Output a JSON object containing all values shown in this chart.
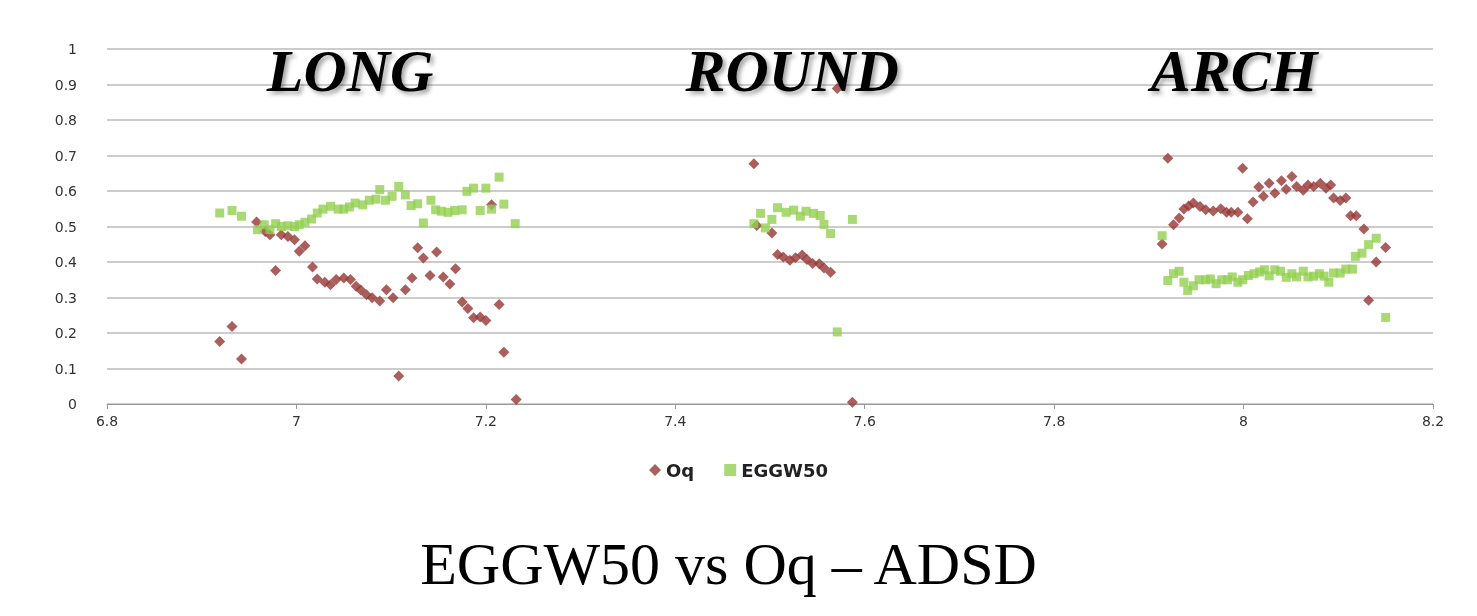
{
  "chart_data": {
    "type": "scatter",
    "title": "EGGW50 vs Oq – ADSD",
    "annotations": [
      "LONG",
      "ROUND",
      "ARCH"
    ],
    "xlim": [
      6.8,
      8.2
    ],
    "xticks": [
      6.8,
      7,
      7.2,
      7.4,
      7.6,
      7.8,
      8,
      8.2
    ],
    "ylim": [
      0,
      1
    ],
    "yticks": [
      0,
      0.1,
      0.2,
      0.3,
      0.4,
      0.5,
      0.6,
      0.7,
      0.8,
      0.9,
      1
    ],
    "grid": "y",
    "legend": "bottom",
    "series": [
      {
        "name": "Oq",
        "color": "#953735",
        "marker": "diamond",
        "x": [
          6.919,
          6.932,
          6.942,
          6.958,
          6.967,
          6.972,
          6.978,
          6.984,
          6.991,
          6.998,
          7.003,
          7.009,
          7.017,
          7.022,
          7.03,
          7.036,
          7.042,
          7.05,
          7.057,
          7.063,
          7.068,
          7.074,
          7.08,
          7.088,
          7.095,
          7.102,
          7.108,
          7.115,
          7.122,
          7.128,
          7.134,
          7.141,
          7.148,
          7.155,
          7.162,
          7.168,
          7.175,
          7.181,
          7.187,
          7.194,
          7.2,
          7.206,
          7.214,
          7.219,
          7.232,
          7.571,
          7.483,
          7.486,
          7.502,
          7.508,
          7.514,
          7.521,
          7.527,
          7.534,
          7.539,
          7.545,
          7.552,
          7.557,
          7.564,
          7.587,
          7.92,
          7.914,
          7.926,
          7.932,
          7.937,
          7.942,
          7.947,
          7.954,
          7.96,
          7.968,
          7.976,
          7.982,
          7.987,
          7.994,
          7.999,
          8.004,
          8.01,
          8.016,
          8.021,
          8.027,
          8.033,
          8.04,
          8.045,
          8.051,
          8.056,
          8.063,
          8.068,
          8.074,
          8.081,
          8.087,
          8.092,
          8.095,
          8.102,
          8.108,
          8.113,
          8.119,
          8.127,
          8.132,
          8.14,
          8.15
        ],
        "values": [
          0.176,
          0.218,
          0.127,
          0.513,
          0.486,
          0.477,
          0.376,
          0.477,
          0.472,
          0.463,
          0.43,
          0.446,
          0.386,
          0.352,
          0.343,
          0.336,
          0.351,
          0.355,
          0.351,
          0.332,
          0.321,
          0.308,
          0.299,
          0.29,
          0.322,
          0.299,
          0.079,
          0.322,
          0.355,
          0.44,
          0.411,
          0.362,
          0.428,
          0.358,
          0.338,
          0.381,
          0.287,
          0.269,
          0.243,
          0.245,
          0.235,
          0.561,
          0.28,
          0.146,
          0.013,
          0.889,
          0.677,
          0.503,
          0.482,
          0.421,
          0.414,
          0.405,
          0.412,
          0.42,
          0.407,
          0.396,
          0.395,
          0.383,
          0.371,
          0.005,
          0.692,
          0.451,
          0.505,
          0.524,
          0.549,
          0.558,
          0.566,
          0.556,
          0.547,
          0.544,
          0.55,
          0.54,
          0.54,
          0.54,
          0.664,
          0.522,
          0.569,
          0.611,
          0.585,
          0.622,
          0.594,
          0.629,
          0.605,
          0.641,
          0.613,
          0.602,
          0.617,
          0.613,
          0.622,
          0.608,
          0.617,
          0.58,
          0.573,
          0.58,
          0.53,
          0.53,
          0.493,
          0.292,
          0.4,
          0.441
        ]
      },
      {
        "name": "EGGW50",
        "color": "#92d050",
        "marker": "square",
        "x": [
          6.919,
          6.932,
          6.942,
          6.959,
          6.966,
          6.972,
          6.978,
          6.984,
          6.991,
          6.998,
          7.003,
          7.009,
          7.016,
          7.022,
          7.028,
          7.036,
          7.044,
          7.05,
          7.056,
          7.062,
          7.07,
          7.077,
          7.084,
          7.088,
          7.094,
          7.101,
          7.108,
          7.115,
          7.121,
          7.128,
          7.134,
          7.142,
          7.147,
          7.153,
          7.16,
          7.167,
          7.175,
          7.18,
          7.187,
          7.194,
          7.2,
          7.206,
          7.214,
          7.219,
          7.231,
          7.483,
          7.49,
          7.495,
          7.502,
          7.508,
          7.517,
          7.525,
          7.532,
          7.538,
          7.546,
          7.553,
          7.557,
          7.564,
          7.571,
          7.587,
          7.914,
          7.92,
          7.926,
          7.932,
          7.937,
          7.941,
          7.947,
          7.953,
          7.96,
          7.965,
          7.971,
          7.977,
          7.983,
          7.988,
          7.994,
          7.999,
          8.005,
          8.011,
          8.017,
          8.022,
          8.027,
          8.033,
          8.039,
          8.045,
          8.051,
          8.056,
          8.063,
          8.068,
          8.074,
          8.08,
          8.085,
          8.09,
          8.095,
          8.102,
          8.108,
          8.115,
          8.118,
          8.125,
          8.132,
          8.14,
          8.15
        ],
        "values": [
          0.538,
          0.545,
          0.529,
          0.491,
          0.505,
          0.491,
          0.508,
          0.5,
          0.502,
          0.5,
          0.505,
          0.512,
          0.521,
          0.538,
          0.549,
          0.557,
          0.549,
          0.549,
          0.555,
          0.566,
          0.561,
          0.574,
          0.577,
          0.604,
          0.574,
          0.585,
          0.613,
          0.589,
          0.559,
          0.564,
          0.51,
          0.574,
          0.547,
          0.543,
          0.54,
          0.545,
          0.547,
          0.599,
          0.608,
          0.545,
          0.608,
          0.549,
          0.639,
          0.563,
          0.508,
          0.508,
          0.537,
          0.496,
          0.52,
          0.553,
          0.54,
          0.546,
          0.529,
          0.543,
          0.537,
          0.531,
          0.506,
          0.48,
          0.203,
          0.52,
          0.474,
          0.348,
          0.367,
          0.374,
          0.343,
          0.32,
          0.333,
          0.35,
          0.35,
          0.352,
          0.339,
          0.35,
          0.35,
          0.358,
          0.343,
          0.35,
          0.362,
          0.367,
          0.372,
          0.378,
          0.361,
          0.378,
          0.374,
          0.357,
          0.367,
          0.358,
          0.374,
          0.358,
          0.36,
          0.367,
          0.36,
          0.343,
          0.369,
          0.369,
          0.38,
          0.38,
          0.416,
          0.425,
          0.449,
          0.467,
          0.244
        ]
      }
    ]
  }
}
